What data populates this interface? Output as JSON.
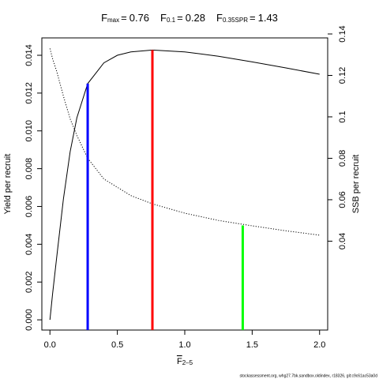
{
  "chart_data": {
    "type": "line",
    "markers": [
      {
        "symbol": "F",
        "subscript": "max",
        "relation": "=",
        "x": 0.76,
        "y": 0.01428,
        "axis": "y",
        "color": "#ff0000"
      },
      {
        "symbol": "F",
        "subscript": "0.1",
        "relation": "=",
        "x": 0.28,
        "y": 0.0125,
        "axis": "y",
        "color": "#0000ff"
      },
      {
        "symbol": "F",
        "subscript": "0.35SPR",
        "relation": "=",
        "x": 1.43,
        "y": 0.0476,
        "axis": "y2",
        "color": "#00ff00"
      }
    ],
    "x_label": {
      "symbol": "F",
      "subscript": "2–5"
    },
    "y_label": "Yield per recruit",
    "y2_label": "SSB per recruit",
    "footer": "stockassessment.org, whg27.7bk.sandbox.oldindex, r18326, git:c9c61ac53a0d",
    "x": [
      0,
      0.02,
      0.05,
      0.1,
      0.15,
      0.2,
      0.28,
      0.4,
      0.5,
      0.6,
      0.76,
      1.0,
      1.25,
      1.5,
      1.75,
      2.0
    ],
    "series": [
      {
        "name": "Yield per recruit",
        "color": "#000000",
        "dash": "solid",
        "values": [
          0,
          0.0014,
          0.0033,
          0.0064,
          0.0089,
          0.0107,
          0.0125,
          0.0136,
          0.014,
          0.01418,
          0.01428,
          0.01418,
          0.01395,
          0.01365,
          0.01333,
          0.013
        ]
      },
      {
        "name": "SSB per recruit",
        "color": "#000000",
        "dash": "dotted",
        "axis": "y2",
        "values": [
          0.133,
          0.128,
          0.122,
          0.11,
          0.099,
          0.091,
          0.08,
          0.07,
          0.066,
          0.062,
          0.058,
          0.0535,
          0.05,
          0.0474,
          0.045,
          0.0429
        ]
      }
    ],
    "xlim": [
      -0.06,
      2.06
    ],
    "xticks": [
      {
        "value": 0,
        "label": "0.0"
      },
      {
        "value": 0.5,
        "label": "0.5"
      },
      {
        "value": 1,
        "label": "1.0"
      },
      {
        "value": 1.5,
        "label": "1.5"
      },
      {
        "value": 2,
        "label": "2.0"
      }
    ],
    "ylim": [
      -0.00054,
      0.01492
    ],
    "yticks": [
      {
        "value": 0,
        "label": "0.000"
      },
      {
        "value": 0.002,
        "label": "0.002"
      },
      {
        "value": 0.004,
        "label": "0.004"
      },
      {
        "value": 0.006,
        "label": "0.006"
      },
      {
        "value": 0.008,
        "label": "0.008"
      },
      {
        "value": 0.01,
        "label": "0.010"
      },
      {
        "value": 0.012,
        "label": "0.012"
      },
      {
        "value": 0.014,
        "label": "0.014"
      }
    ],
    "y2lim": [
      -0.0029,
      0.1381
    ],
    "y2ticks": [
      0.04,
      0.06,
      0.08,
      0.1,
      0.12,
      0.14
    ]
  }
}
